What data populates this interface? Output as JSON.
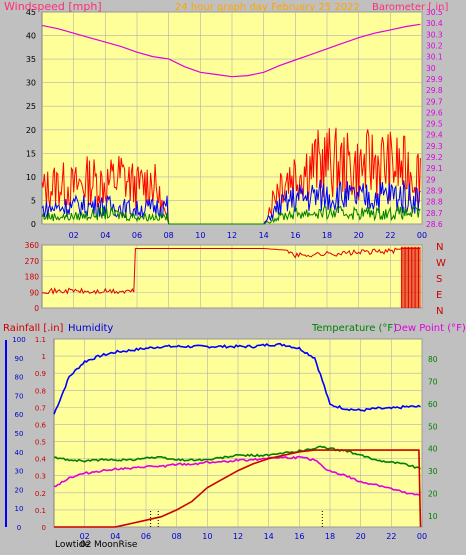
{
  "header": {
    "left_label": "Windspeed [mph]",
    "center_label": "24 hour graph day    February 25 2022",
    "right_label": "Barometer [.in]"
  },
  "wind_panel": {
    "x_ticks": [
      "02",
      "04",
      "06",
      "08",
      "10",
      "12",
      "14",
      "16",
      "18",
      "20",
      "22",
      "00"
    ],
    "left_ticks": [
      "0",
      "5",
      "10",
      "15",
      "20",
      "25",
      "30",
      "35",
      "40",
      "45"
    ],
    "right_ticks": [
      "28.6",
      "28.7",
      "28.8",
      "28.9",
      "29",
      "29.1",
      "29.2",
      "29.3",
      "29.4",
      "29.5",
      "29.6",
      "29.7",
      "29.8",
      "29.9",
      "30",
      "30.1",
      "30.2",
      "30.3",
      "30.4",
      "30.5"
    ]
  },
  "dir_panel": {
    "left_ticks": [
      "0",
      "90",
      "180",
      "270",
      "360"
    ],
    "compass": [
      "N",
      "W",
      "S",
      "E",
      "N"
    ]
  },
  "bottom_panel": {
    "left_label": "Rainfall [.in]",
    "humidity_label": "Humidity",
    "temp_label": "Temperature (°F)",
    "dew_label": "Dew Point (°F)",
    "humidity_ticks": [
      "0",
      "10",
      "20",
      "30",
      "40",
      "50",
      "60",
      "70",
      "80",
      "90",
      "100"
    ],
    "rain_ticks": [
      "0",
      "0.1",
      "0.2",
      "0.3",
      "0.4",
      "0.5",
      "0.6",
      "0.7",
      "0.8",
      "0.9",
      "1",
      "1.1"
    ],
    "temp_ticks": [
      "10",
      "20",
      "30",
      "40",
      "50",
      "60",
      "70",
      "80"
    ],
    "x_ticks": [
      "02",
      "04",
      "06",
      "08",
      "10",
      "12",
      "14",
      "16",
      "18",
      "20",
      "22",
      "00"
    ],
    "footer_labels": [
      "Lowtide",
      "02",
      "MoonRise"
    ]
  },
  "colors": {
    "plot_bg": "#ffff99",
    "grid": "#b0b0b0",
    "wind_gust": "#ff0000",
    "wind_avg": "#0000ff",
    "wind_low": "#008000",
    "barometer": "#e000e0",
    "direction": "#e00000",
    "humidity": "#0000ff",
    "temperature": "#008000",
    "dewpoint": "#e000e0",
    "rain": "#cc0000",
    "label_orange": "#ffa500"
  },
  "chart_data": [
    {
      "type": "line",
      "title": "",
      "xlabel": "",
      "xlim": [
        0,
        24
      ],
      "ylim_left": [
        0,
        45
      ],
      "ylim_right": [
        28.6,
        30.5
      ],
      "series": [
        {
          "name": "Windspeed [mph]",
          "axis": "left",
          "role": "gust",
          "points": [
            [
              0,
              9
            ],
            [
              1,
              11
            ],
            [
              2,
              10
            ],
            [
              3,
              12
            ],
            [
              4,
              11
            ],
            [
              5,
              13
            ],
            [
              6,
              10
            ],
            [
              7,
              12
            ],
            [
              8,
              0
            ],
            [
              14,
              0
            ],
            [
              15,
              12
            ],
            [
              16,
              14
            ],
            [
              17,
              16
            ],
            [
              18,
              17
            ],
            [
              19,
              16
            ],
            [
              20,
              15
            ],
            [
              21,
              17
            ],
            [
              22,
              16
            ],
            [
              23.9,
              14
            ]
          ]
        },
        {
          "name": "",
          "axis": "left",
          "role": "average",
          "points": [
            [
              0,
              4
            ],
            [
              2,
              5
            ],
            [
              4,
              5
            ],
            [
              6,
              4
            ],
            [
              7.9,
              5
            ],
            [
              8,
              0
            ],
            [
              14,
              0
            ],
            [
              15,
              5
            ],
            [
              16,
              7
            ],
            [
              18,
              8
            ],
            [
              20,
              7
            ],
            [
              22,
              8
            ],
            [
              23.9,
              7
            ]
          ]
        },
        {
          "name": "",
          "axis": "left",
          "role": "low",
          "points": [
            [
              0,
              2
            ],
            [
              2,
              2
            ],
            [
              4,
              3
            ],
            [
              6,
              2
            ],
            [
              7.9,
              2
            ],
            [
              8,
              0
            ],
            [
              14,
              0
            ],
            [
              15,
              2
            ],
            [
              16,
              3
            ],
            [
              18,
              3
            ],
            [
              20,
              3
            ],
            [
              22,
              3
            ],
            [
              23.9,
              3
            ]
          ]
        },
        {
          "name": "Barometer [.in]",
          "axis": "right",
          "points": [
            [
              0,
              30.38
            ],
            [
              1,
              30.35
            ],
            [
              2,
              30.31
            ],
            [
              3,
              30.27
            ],
            [
              4,
              30.23
            ],
            [
              5,
              30.19
            ],
            [
              6,
              30.14
            ],
            [
              7,
              30.1
            ],
            [
              8,
              30.08
            ],
            [
              9,
              30.01
            ],
            [
              10,
              29.96
            ],
            [
              11,
              29.94
            ],
            [
              12,
              29.92
            ],
            [
              13,
              29.93
            ],
            [
              14,
              29.96
            ],
            [
              15,
              30.02
            ],
            [
              16,
              30.07
            ],
            [
              17,
              30.12
            ],
            [
              18,
              30.17
            ],
            [
              19,
              30.22
            ],
            [
              20,
              30.27
            ],
            [
              21,
              30.31
            ],
            [
              22,
              30.34
            ],
            [
              23,
              30.37
            ],
            [
              23.9,
              30.39
            ]
          ]
        }
      ]
    },
    {
      "type": "line",
      "title": "",
      "xlim": [
        0,
        24
      ],
      "ylim": [
        0,
        360
      ],
      "series": [
        {
          "name": "",
          "points": [
            [
              0,
              100
            ],
            [
              1,
              95
            ],
            [
              2,
              100
            ],
            [
              3,
              90
            ],
            [
              4,
              95
            ],
            [
              5,
              92
            ],
            [
              5.8,
              95
            ],
            [
              5.9,
              340
            ],
            [
              8,
              340
            ],
            [
              10,
              340
            ],
            [
              12,
              340
            ],
            [
              14,
              340
            ],
            [
              15.5,
              330
            ],
            [
              16,
              300
            ],
            [
              17,
              305
            ],
            [
              18,
              310
            ],
            [
              19,
              312
            ],
            [
              20,
              318
            ],
            [
              21,
              322
            ],
            [
              22,
              325
            ],
            [
              22.5,
              330
            ],
            [
              22.7,
              340
            ],
            [
              23.9,
              340
            ]
          ]
        }
      ]
    },
    {
      "type": "line",
      "title": "",
      "xlim": [
        0,
        24
      ],
      "ylim_humidity": [
        0,
        100
      ],
      "ylim_rain": [
        0,
        1.1
      ],
      "ylim_temp": [
        5,
        89
      ],
      "series": [
        {
          "name": "Humidity",
          "axis": "humidity",
          "points": [
            [
              0,
              60
            ],
            [
              0.5,
              70
            ],
            [
              1,
              80
            ],
            [
              2,
              88
            ],
            [
              3,
              91
            ],
            [
              4,
              93
            ],
            [
              5,
              94
            ],
            [
              6,
              95
            ],
            [
              7,
              96
            ],
            [
              8,
              96
            ],
            [
              9,
              96
            ],
            [
              10,
              96
            ],
            [
              11,
              96
            ],
            [
              12,
              96
            ],
            [
              13,
              96
            ],
            [
              14,
              97
            ],
            [
              15,
              97
            ],
            [
              16,
              95
            ],
            [
              17,
              90
            ],
            [
              17.5,
              78
            ],
            [
              18,
              65
            ],
            [
              19,
              63
            ],
            [
              20,
              62
            ],
            [
              21,
              63
            ],
            [
              22,
              63
            ],
            [
              23,
              64
            ],
            [
              23.9,
              64
            ]
          ]
        },
        {
          "name": "Temperature (°F)",
          "axis": "temp",
          "points": [
            [
              0,
              36
            ],
            [
              1,
              35
            ],
            [
              2,
              34.5
            ],
            [
              3,
              35
            ],
            [
              4,
              35
            ],
            [
              5,
              35
            ],
            [
              6,
              36
            ],
            [
              7,
              36
            ],
            [
              8,
              35
            ],
            [
              9,
              35
            ],
            [
              10,
              35
            ],
            [
              11,
              36
            ],
            [
              12,
              37
            ],
            [
              13,
              37
            ],
            [
              14,
              37
            ],
            [
              15,
              38
            ],
            [
              16,
              39
            ],
            [
              17,
              40
            ],
            [
              17.5,
              41
            ],
            [
              18,
              40
            ],
            [
              19,
              39
            ],
            [
              20,
              37
            ],
            [
              21,
              35
            ],
            [
              22,
              34
            ],
            [
              23,
              33
            ],
            [
              23.9,
              31
            ]
          ]
        },
        {
          "name": "Dew Point (°F)",
          "axis": "temp",
          "points": [
            [
              0,
              23
            ],
            [
              1,
              27
            ],
            [
              2,
              29
            ],
            [
              3,
              30
            ],
            [
              4,
              31
            ],
            [
              5,
              31
            ],
            [
              6,
              32
            ],
            [
              7,
              32
            ],
            [
              8,
              33
            ],
            [
              9,
              33
            ],
            [
              10,
              34
            ],
            [
              11,
              34
            ],
            [
              12,
              35
            ],
            [
              13,
              35
            ],
            [
              14,
              36
            ],
            [
              15,
              36
            ],
            [
              16,
              36
            ],
            [
              17,
              35
            ],
            [
              17.5,
              32
            ],
            [
              18,
              30
            ],
            [
              19,
              28
            ],
            [
              20,
              25
            ],
            [
              21,
              24
            ],
            [
              22,
              22
            ],
            [
              23,
              20
            ],
            [
              23.9,
              19
            ]
          ]
        },
        {
          "name": "Rainfall [.in]",
          "axis": "rain",
          "points": [
            [
              0,
              0
            ],
            [
              2,
              0
            ],
            [
              4,
              0
            ],
            [
              4.5,
              0.01
            ],
            [
              5,
              0.02
            ],
            [
              6,
              0.04
            ],
            [
              7,
              0.06
            ],
            [
              8,
              0.1
            ],
            [
              9,
              0.15
            ],
            [
              10,
              0.23
            ],
            [
              11,
              0.28
            ],
            [
              12,
              0.33
            ],
            [
              13,
              0.37
            ],
            [
              14,
              0.4
            ],
            [
              15,
              0.42
            ],
            [
              16,
              0.44
            ],
            [
              17,
              0.45
            ],
            [
              18,
              0.45
            ],
            [
              19,
              0.45
            ],
            [
              20,
              0.45
            ],
            [
              21,
              0.45
            ],
            [
              22,
              0.45
            ],
            [
              23,
              0.45
            ],
            [
              23.8,
              0.45
            ],
            [
              23.9,
              0
            ]
          ]
        }
      ]
    }
  ]
}
